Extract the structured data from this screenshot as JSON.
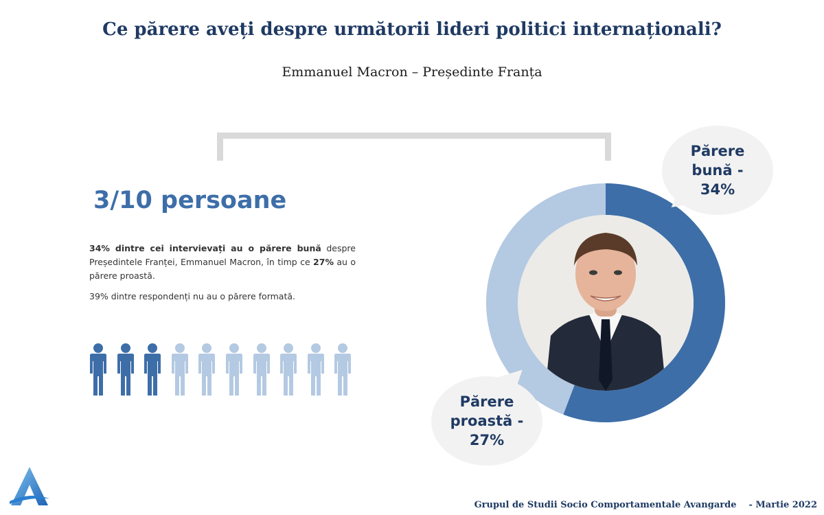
{
  "header": {
    "title": "Ce părere aveți despre următorii lideri politici internaționali?",
    "subtitle": "Emmanuel Macron – Președinte Franța"
  },
  "summary": {
    "big_stat": "3/10 persoane",
    "para_bold_1": "34% dintre cei intervievați au o părere bună",
    "para_text_1": " despre Președintele Franței, Emmanuel Macron, în timp ce ",
    "para_bold_2": "27%",
    "para_text_2": " au o părere proastă.",
    "para2": "39% dintre respondenți nu au o părere formată."
  },
  "pictogram": {
    "total": 10,
    "highlighted": 3,
    "icon": "person-icon",
    "colors": {
      "highlighted": "#3d6ea8",
      "muted": "#b4c9e2"
    }
  },
  "donut": {
    "slices": [
      {
        "label": "Părere bună",
        "value": 34,
        "color": "#3d6ea8"
      },
      {
        "label": "Părere proastă",
        "value": 27,
        "color": "#b4c9e2"
      }
    ],
    "photo": "portrait-emmanuel-macron"
  },
  "callouts": {
    "good": {
      "line1": "Părere",
      "line2": "bună -",
      "line3": "34%"
    },
    "bad": {
      "line1": "Părere",
      "line2": "proastă -",
      "line3": "27%"
    }
  },
  "footer": {
    "org": "Grupul de Studii Socio Comportamentale Avangarde",
    "date": "- Martie 2022"
  },
  "colors": {
    "title": "#1f3a63",
    "accent": "#3d6ea8",
    "accent_light": "#b4c9e2"
  }
}
